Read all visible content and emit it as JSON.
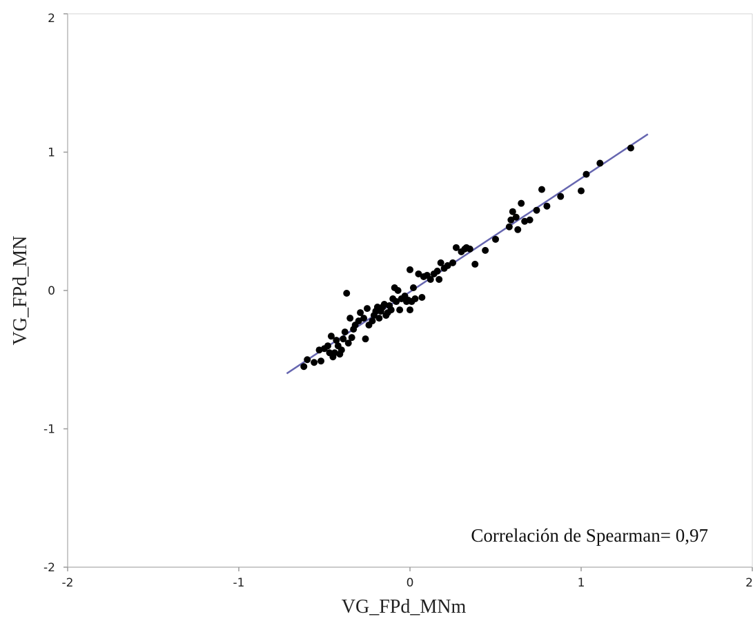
{
  "chart_data": {
    "type": "scatter",
    "title": "",
    "xlabel": "VG_FPd_MNm",
    "ylabel": "VG_FPd_MN",
    "xlim": [
      -2,
      2
    ],
    "ylim": [
      -2,
      2
    ],
    "x_ticks": [
      "-2",
      "-1",
      "0",
      "1",
      "2"
    ],
    "y_ticks": [
      "-2",
      "-1",
      "0",
      "1",
      "2"
    ],
    "grid": false,
    "annotation": "Correlación de Spearman= 0,97",
    "point_color": "#000000",
    "line_color": "#6666b0",
    "series": [
      {
        "type": "scatter",
        "points": [
          [
            -0.62,
            -0.55
          ],
          [
            -0.6,
            -0.5
          ],
          [
            -0.56,
            -0.52
          ],
          [
            -0.53,
            -0.43
          ],
          [
            -0.52,
            -0.51
          ],
          [
            -0.5,
            -0.42
          ],
          [
            -0.48,
            -0.4
          ],
          [
            -0.47,
            -0.45
          ],
          [
            -0.46,
            -0.33
          ],
          [
            -0.45,
            -0.48
          ],
          [
            -0.44,
            -0.45
          ],
          [
            -0.43,
            -0.36
          ],
          [
            -0.42,
            -0.4
          ],
          [
            -0.41,
            -0.46
          ],
          [
            -0.4,
            -0.43
          ],
          [
            -0.39,
            -0.35
          ],
          [
            -0.38,
            -0.3
          ],
          [
            -0.37,
            -0.02
          ],
          [
            -0.36,
            -0.38
          ],
          [
            -0.35,
            -0.2
          ],
          [
            -0.34,
            -0.34
          ],
          [
            -0.33,
            -0.28
          ],
          [
            -0.32,
            -0.25
          ],
          [
            -0.3,
            -0.22
          ],
          [
            -0.29,
            -0.16
          ],
          [
            -0.27,
            -0.2
          ],
          [
            -0.26,
            -0.35
          ],
          [
            -0.25,
            -0.13
          ],
          [
            -0.24,
            -0.25
          ],
          [
            -0.22,
            -0.22
          ],
          [
            -0.21,
            -0.18
          ],
          [
            -0.2,
            -0.15
          ],
          [
            -0.19,
            -0.12
          ],
          [
            -0.18,
            -0.2
          ],
          [
            -0.17,
            -0.15
          ],
          [
            -0.16,
            -0.12
          ],
          [
            -0.15,
            -0.1
          ],
          [
            -0.14,
            -0.18
          ],
          [
            -0.13,
            -0.16
          ],
          [
            -0.12,
            -0.11
          ],
          [
            -0.11,
            -0.14
          ],
          [
            -0.1,
            -0.06
          ],
          [
            -0.09,
            0.02
          ],
          [
            -0.08,
            -0.08
          ],
          [
            -0.07,
            0.0
          ],
          [
            -0.06,
            -0.14
          ],
          [
            -0.05,
            -0.06
          ],
          [
            -0.03,
            -0.04
          ],
          [
            -0.02,
            -0.08
          ],
          [
            -0.01,
            -0.07
          ],
          [
            0.0,
            0.15
          ],
          [
            0.0,
            -0.14
          ],
          [
            0.01,
            -0.08
          ],
          [
            0.02,
            0.02
          ],
          [
            0.03,
            -0.06
          ],
          [
            0.05,
            0.12
          ],
          [
            0.07,
            -0.05
          ],
          [
            0.08,
            0.1
          ],
          [
            0.1,
            0.11
          ],
          [
            0.12,
            0.08
          ],
          [
            0.14,
            0.12
          ],
          [
            0.16,
            0.14
          ],
          [
            0.17,
            0.08
          ],
          [
            0.18,
            0.2
          ],
          [
            0.2,
            0.16
          ],
          [
            0.22,
            0.18
          ],
          [
            0.25,
            0.2
          ],
          [
            0.27,
            0.31
          ],
          [
            0.3,
            0.28
          ],
          [
            0.32,
            0.3
          ],
          [
            0.33,
            0.31
          ],
          [
            0.35,
            0.3
          ],
          [
            0.38,
            0.19
          ],
          [
            0.44,
            0.29
          ],
          [
            0.5,
            0.37
          ],
          [
            0.58,
            0.46
          ],
          [
            0.59,
            0.51
          ],
          [
            0.6,
            0.57
          ],
          [
            0.62,
            0.53
          ],
          [
            0.63,
            0.44
          ],
          [
            0.65,
            0.63
          ],
          [
            0.67,
            0.5
          ],
          [
            0.7,
            0.51
          ],
          [
            0.74,
            0.58
          ],
          [
            0.77,
            0.73
          ],
          [
            0.8,
            0.61
          ],
          [
            0.88,
            0.68
          ],
          [
            1.0,
            0.72
          ],
          [
            1.03,
            0.84
          ],
          [
            1.11,
            0.92
          ],
          [
            1.29,
            1.03
          ]
        ]
      },
      {
        "type": "line",
        "points": [
          [
            -0.72,
            -0.6
          ],
          [
            1.39,
            1.13
          ]
        ]
      }
    ]
  }
}
